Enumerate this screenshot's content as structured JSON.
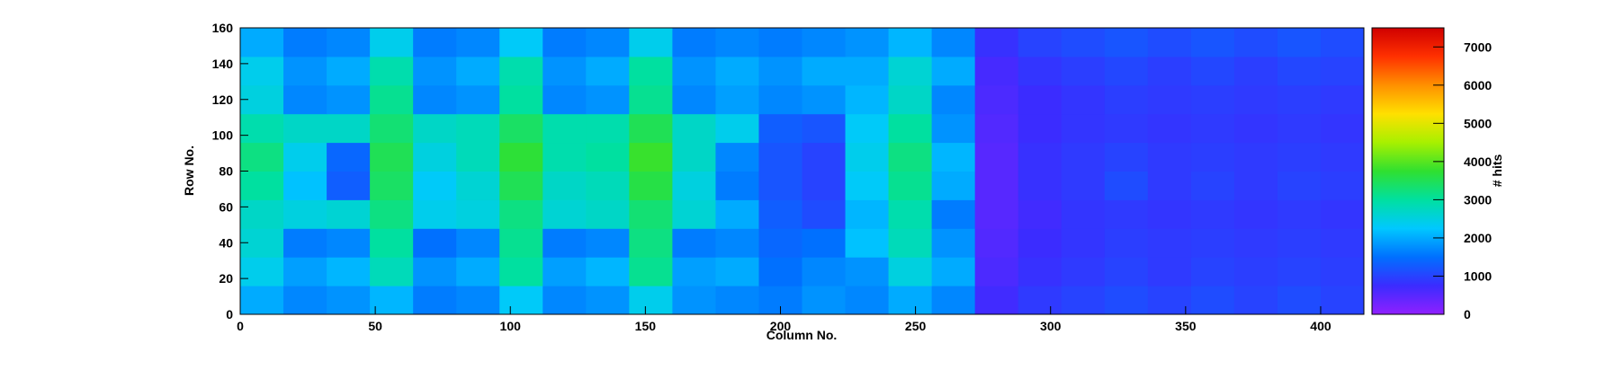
{
  "chart_data": {
    "type": "heatmap",
    "x_label": "Column No.",
    "y_label": "Row No.",
    "colorbar_label": "# hits",
    "xlim": [
      0,
      416
    ],
    "ylim": [
      0,
      160
    ],
    "zlim": [
      0,
      7500
    ],
    "xticks": [
      0,
      50,
      100,
      150,
      200,
      250,
      300,
      350,
      400
    ],
    "yticks": [
      0,
      20,
      40,
      60,
      80,
      100,
      120,
      140,
      160
    ],
    "zticks": [
      0,
      1000,
      2000,
      3000,
      4000,
      5000,
      6000,
      7000
    ],
    "colormap": [
      "#9020ff",
      "#3b2cff",
      "#0070ff",
      "#00c8ff",
      "#00e0a0",
      "#30e030",
      "#a8f000",
      "#ffe000",
      "#ff9000",
      "#ff3000",
      "#d00000"
    ],
    "x": [
      0,
      16,
      32,
      48,
      64,
      80,
      96,
      112,
      128,
      144,
      160,
      176,
      192,
      208,
      224,
      240,
      256,
      272,
      288,
      304,
      320,
      336,
      352,
      368,
      384,
      400,
      416
    ],
    "y": [
      0,
      16,
      32,
      48,
      64,
      80,
      96,
      112,
      128,
      144,
      160
    ],
    "z": [
      [
        2000,
        1700,
        1800,
        2100,
        1600,
        1700,
        2300,
        1700,
        1800,
        2400,
        1800,
        1700,
        1600,
        1800,
        1700,
        2000,
        1700,
        700,
        900,
        1000,
        1100,
        1000,
        1100,
        1000,
        1100,
        1000
      ],
      [
        2400,
        1900,
        2100,
        2800,
        1800,
        2000,
        3000,
        1900,
        2100,
        3100,
        1900,
        2000,
        1500,
        1700,
        1800,
        2500,
        2000,
        600,
        800,
        900,
        1000,
        900,
        1000,
        950,
        1000,
        950
      ],
      [
        2600,
        1600,
        1700,
        3000,
        1500,
        1700,
        3100,
        1600,
        1700,
        3200,
        1600,
        1700,
        1400,
        1500,
        2200,
        2800,
        1800,
        550,
        750,
        850,
        950,
        900,
        950,
        900,
        950,
        900
      ],
      [
        2700,
        2500,
        2600,
        3200,
        2400,
        2500,
        3200,
        2600,
        2700,
        3300,
        2600,
        2000,
        1300,
        1100,
        2100,
        2900,
        1600,
        500,
        700,
        850,
        900,
        850,
        900,
        850,
        900,
        850
      ],
      [
        3000,
        2200,
        1300,
        3400,
        2300,
        2600,
        3500,
        2700,
        2800,
        3600,
        2500,
        1600,
        1200,
        1000,
        2300,
        3100,
        2000,
        500,
        800,
        900,
        1100,
        900,
        1000,
        900,
        1000,
        950
      ],
      [
        3200,
        2400,
        1400,
        3500,
        2500,
        2800,
        3700,
        2900,
        3000,
        3800,
        2700,
        1700,
        1200,
        1000,
        2400,
        3200,
        2100,
        500,
        800,
        900,
        1000,
        900,
        950,
        900,
        950,
        900
      ],
      [
        2900,
        2700,
        2700,
        3300,
        2700,
        2800,
        3400,
        2900,
        2900,
        3500,
        2700,
        2400,
        1300,
        1200,
        2300,
        3000,
        1800,
        550,
        750,
        850,
        900,
        850,
        900,
        850,
        900,
        850
      ],
      [
        2500,
        1700,
        1800,
        3100,
        1700,
        1800,
        3000,
        1700,
        1800,
        3100,
        1700,
        1900,
        1700,
        1800,
        2100,
        2700,
        1700,
        600,
        750,
        850,
        950,
        900,
        950,
        900,
        950,
        900
      ],
      [
        2400,
        1800,
        2000,
        2900,
        1800,
        2000,
        2900,
        1800,
        2000,
        3000,
        1800,
        2000,
        1800,
        2000,
        2000,
        2600,
        2000,
        650,
        850,
        950,
        1050,
        950,
        1050,
        950,
        1050,
        1000
      ],
      [
        2000,
        1600,
        1700,
        2400,
        1600,
        1700,
        2300,
        1600,
        1700,
        2400,
        1600,
        1700,
        1600,
        1700,
        1800,
        2100,
        1700,
        800,
        1000,
        1100,
        1200,
        1100,
        1200,
        1100,
        1200,
        1100
      ]
    ]
  }
}
